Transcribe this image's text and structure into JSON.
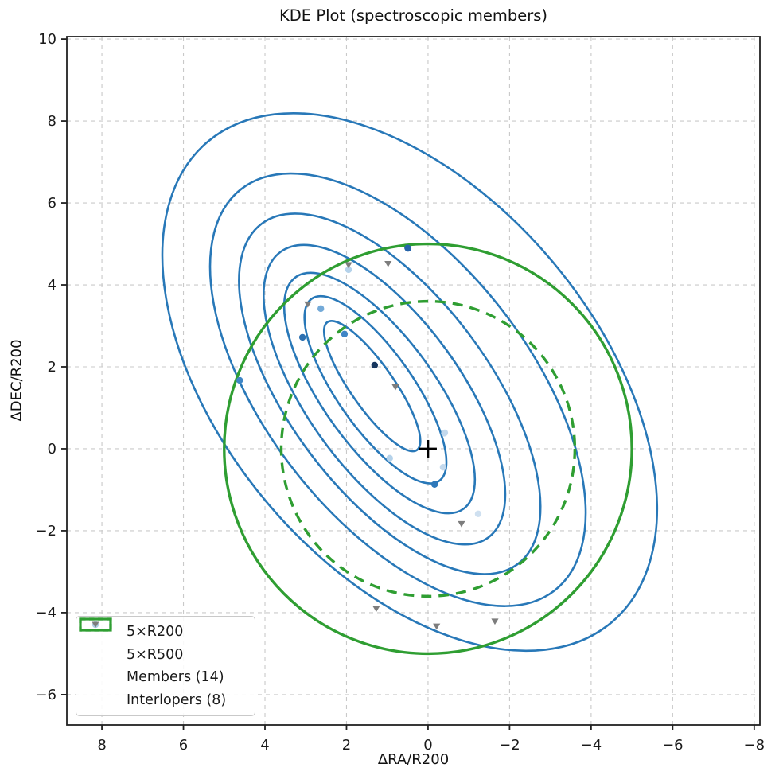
{
  "chart_data": {
    "type": "scatter",
    "title": "KDE Plot (spectroscopic members)",
    "xlabel": "ΔRA/R200",
    "ylabel": "ΔDEC/R200",
    "xlim": [
      8.86,
      -8.14
    ],
    "ylim": [
      -6.74,
      10.06
    ],
    "x_inverted": true,
    "grid": true,
    "xticks": [
      8,
      6,
      4,
      2,
      0,
      -2,
      -4,
      -6,
      -8
    ],
    "xtick_labels": [
      "8",
      "6",
      "4",
      "2",
      "0",
      "−2",
      "−4",
      "−6",
      "−8"
    ],
    "yticks": [
      10,
      8,
      6,
      4,
      2,
      0,
      -2,
      -4,
      -6
    ],
    "ytick_labels": [
      "10",
      "8",
      "6",
      "4",
      "2",
      "0",
      "−2",
      "−4",
      "−6"
    ],
    "series": [
      {
        "name": "Members (14)",
        "marker": "circle",
        "color": "#aecde4",
        "points": [
          {
            "x": 0.49,
            "y": 4.89,
            "color": "#2563a8"
          },
          {
            "x": 1.95,
            "y": 4.37,
            "color": "#b5d2ea"
          },
          {
            "x": 2.63,
            "y": 3.42,
            "color": "#74aad8"
          },
          {
            "x": 3.08,
            "y": 2.72,
            "color": "#2b6fb0"
          },
          {
            "x": 2.05,
            "y": 2.8,
            "color": "#3f86c6"
          },
          {
            "x": 1.31,
            "y": 2.04,
            "color": "#16355d"
          },
          {
            "x": 4.62,
            "y": 1.67,
            "color": "#3f86c6"
          },
          {
            "x": -0.41,
            "y": 0.39,
            "color": "#c3d9ed"
          },
          {
            "x": 0.94,
            "y": -0.23,
            "color": "#b5d2ea"
          },
          {
            "x": -0.37,
            "y": -0.45,
            "color": "#c3d9ed"
          },
          {
            "x": -0.16,
            "y": -0.87,
            "color": "#2e78ba"
          },
          {
            "x": -1.23,
            "y": -1.59,
            "color": "#cfe0f0"
          },
          {
            "x": 0.5,
            "y": 4.9,
            "color": "#2563a8"
          },
          {
            "x": -0.4,
            "y": 0.38,
            "color": "#c3d9ed"
          }
        ]
      },
      {
        "name": "Interlopers (8)",
        "marker": "triangle-down",
        "color": "#7d7d7d",
        "points": [
          {
            "x": 1.95,
            "y": 4.49
          },
          {
            "x": 0.98,
            "y": 4.52
          },
          {
            "x": 2.95,
            "y": 3.53
          },
          {
            "x": 0.8,
            "y": 1.51
          },
          {
            "x": -0.82,
            "y": -1.83
          },
          {
            "x": 1.27,
            "y": -3.9
          },
          {
            "x": -0.21,
            "y": -4.33
          },
          {
            "x": -1.64,
            "y": -4.21
          }
        ]
      }
    ],
    "overlays": {
      "center_cross": {
        "x": 0,
        "y": 0,
        "color": "#000000"
      },
      "circles": [
        {
          "label": "5×R200",
          "center_x": 0,
          "center_y": 0,
          "radius": 5.0,
          "style": "solid",
          "color": "#2f9e32"
        },
        {
          "label": "5×R500",
          "center_x": 0,
          "center_y": 0,
          "radius": 3.6,
          "style": "dashed",
          "color": "#2f9e32"
        }
      ],
      "kde_contours": {
        "color": "#2878b8",
        "levels": [
          {
            "cx": 0.45,
            "cy": 1.63,
            "a": 7.68,
            "b": 4.57,
            "angle": 50
          },
          {
            "cx": 0.74,
            "cy": 1.44,
            "a": 6.23,
            "b": 3.21,
            "angle": 52
          },
          {
            "cx": 0.94,
            "cy": 1.34,
            "a": 5.21,
            "b": 2.43,
            "angle": 53
          },
          {
            "cx": 1.07,
            "cy": 1.32,
            "a": 4.32,
            "b": 1.87,
            "angle": 54
          },
          {
            "cx": 1.19,
            "cy": 1.36,
            "a": 3.5,
            "b": 1.36,
            "angle": 54
          },
          {
            "cx": 1.29,
            "cy": 1.44,
            "a": 2.72,
            "b": 0.93,
            "angle": 55
          },
          {
            "cx": 1.37,
            "cy": 1.53,
            "a": 1.91,
            "b": 0.53,
            "angle": 55
          }
        ]
      }
    },
    "legend": {
      "position": "lower left",
      "items": [
        {
          "label": "5×R200",
          "marker": "solid-green-rect"
        },
        {
          "label": "5×R500",
          "marker": "dashed-green-rect"
        },
        {
          "label": "Members (14)",
          "marker": "light-blue-dot"
        },
        {
          "label": "Interlopers (8)",
          "marker": "gray-triangle-down"
        }
      ]
    }
  }
}
